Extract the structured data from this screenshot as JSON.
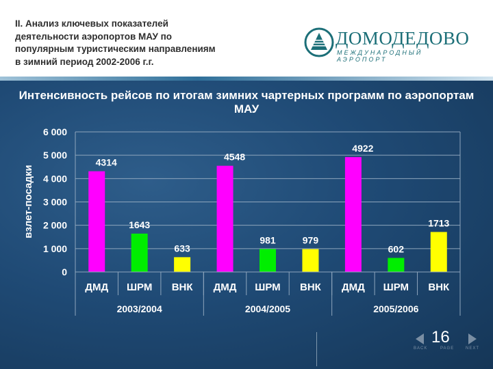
{
  "header": {
    "title": "II. Анализ ключевых показателей\nдеятельности аэропортов МАУ по\nпопулярным туристическим направлениям\nв зимний период 2002-2006 г.г.",
    "logo_name": "ДОМОДЕДОВО",
    "logo_sub": "МЕЖДУНАРОДНЫЙ АЭРОПОРТ"
  },
  "colors": {
    "ДМД": "#ff00ff",
    "ШРМ": "#00ee00",
    "ВНК": "#ffff00",
    "text": "#ffffff",
    "grid": "#8fa6bd"
  },
  "chart_data": {
    "type": "bar",
    "title": "Интенсивность рейсов по итогам зимних чартерных программ по аэропортам МАУ",
    "ylabel": "взлет-посадки",
    "ylim": [
      0,
      6000
    ],
    "yticks": [
      "0",
      "1 000",
      "2 000",
      "3 000",
      "4 000",
      "5 000",
      "6 000"
    ],
    "groups": [
      {
        "name": "2003/2004",
        "bars": [
          {
            "label": "ДМД",
            "value": 4314
          },
          {
            "label": "ШРМ",
            "value": 1643
          },
          {
            "label": "ВНК",
            "value": 633
          }
        ]
      },
      {
        "name": "2004/2005",
        "bars": [
          {
            "label": "ДМД",
            "value": 4548
          },
          {
            "label": "ШРМ",
            "value": 981
          },
          {
            "label": "ВНК",
            "value": 979
          }
        ]
      },
      {
        "name": "2005/2006",
        "bars": [
          {
            "label": "ДМД",
            "value": 4922
          },
          {
            "label": "ШРМ",
            "value": 602
          },
          {
            "label": "ВНК",
            "value": 1713
          }
        ]
      }
    ]
  },
  "footer": {
    "page_number": "16",
    "back": "BACK",
    "page": "PAGE",
    "next": "NEXT"
  }
}
